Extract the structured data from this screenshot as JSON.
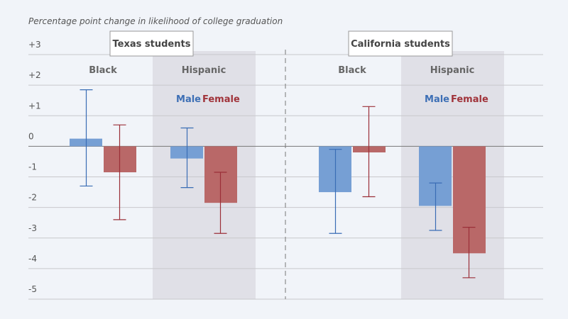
{
  "chart_data": {
    "type": "bar",
    "y_axis_label": "Percentage point change in likelihood of college graduation",
    "panels": [
      "Texas students",
      "California students"
    ],
    "categories": [
      "Black",
      "Hispanic",
      "Black",
      "Hispanic"
    ],
    "series": [
      {
        "name": "Male",
        "color": "#769fd4",
        "error_color": "#3a6db5",
        "label_color": "#3d6fb5",
        "values": [
          0.25,
          -0.4,
          -1.5,
          -1.95
        ],
        "lower": [
          -1.3,
          -1.35,
          -2.85,
          -2.75
        ],
        "upper": [
          1.85,
          0.6,
          -0.1,
          -1.2
        ]
      },
      {
        "name": "Female",
        "color": "#b96868",
        "error_color": "#9b2f38",
        "label_color": "#a0333a",
        "values": [
          -0.85,
          -1.85,
          -0.2,
          -3.5
        ],
        "lower": [
          -2.4,
          -2.85,
          -1.65,
          -4.3
        ],
        "upper": [
          0.7,
          -0.85,
          1.3,
          -2.65
        ]
      }
    ],
    "ylim": [
      -5,
      3
    ],
    "yticks": [
      {
        "value": 3,
        "label": "+3"
      },
      {
        "value": 2,
        "label": "+2"
      },
      {
        "value": 1,
        "label": "+1"
      },
      0,
      -1,
      -2,
      -3,
      -4,
      -5
    ],
    "grid": true
  }
}
